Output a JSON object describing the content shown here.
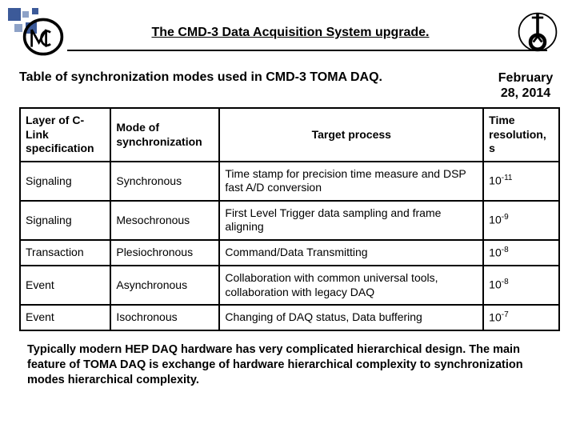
{
  "title": "The CMD-3 Data Acquisition System upgrade.",
  "subhead": "Table of synchronization modes used in CMD-3 TOMA DAQ.",
  "date_line1": "February",
  "date_line2": "28, 2014",
  "columns": {
    "c1": "Layer of C-Link specification",
    "c2": "Mode of synchronization",
    "c3": "Target process",
    "c4": "Time resolution, s"
  },
  "rows": [
    {
      "layer": "Signaling",
      "mode": "Synchronous",
      "process": "Time stamp for precision time measure and DSP fast A/D conversion",
      "res_base": "10",
      "res_exp": "-11"
    },
    {
      "layer": "Signaling",
      "mode": "Mesochronous",
      "process": "First Level Trigger data sampling and frame aligning",
      "res_base": "10",
      "res_exp": "-9"
    },
    {
      "layer": "Transaction",
      "mode": "Plesiochronous",
      "process": "Command/Data Transmitting",
      "res_base": "10",
      "res_exp": "-8"
    },
    {
      "layer": "Event",
      "mode": "Asynchronous",
      "process": "Collaboration with common universal tools, collaboration with legacy DAQ",
      "res_base": "10",
      "res_exp": "-8"
    },
    {
      "layer": "Event",
      "mode": "Isochronous",
      "process": "Changing of DAQ status, Data buffering",
      "res_base": "10",
      "res_exp": "-7"
    }
  ],
  "footnote": "Typically modern HEP DAQ hardware has very complicated hierarchical design. The main feature of TOMA DAQ is exchange of hardware hierarchical complexity to synchronization modes hierarchical complexity.",
  "colors": {
    "accent": "#3c5a99",
    "border": "#000000",
    "bg": "#ffffff"
  }
}
